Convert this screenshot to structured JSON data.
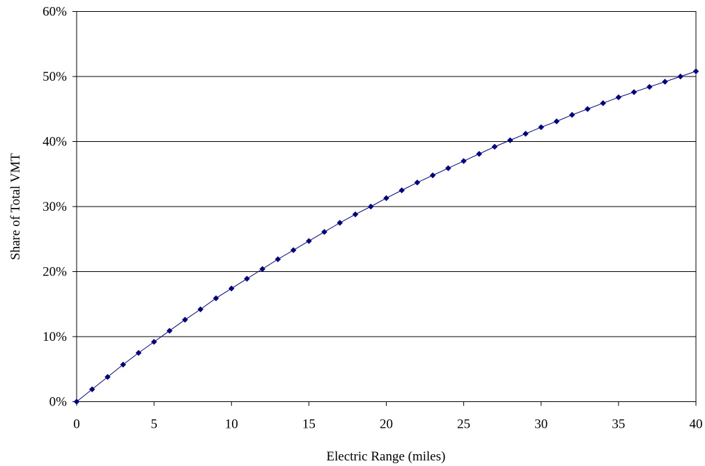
{
  "chart_data": {
    "type": "line",
    "title": "",
    "xlabel": "Electric Range (miles)",
    "ylabel": "Share of Total VMT",
    "xlim": [
      0,
      40
    ],
    "ylim": [
      0,
      60
    ],
    "x_ticks": [
      0,
      5,
      10,
      15,
      20,
      25,
      30,
      35,
      40
    ],
    "x_tick_labels": [
      "0",
      "5",
      "10",
      "15",
      "20",
      "25",
      "30",
      "35",
      "40"
    ],
    "y_ticks": [
      0,
      10,
      20,
      30,
      40,
      50,
      60
    ],
    "y_tick_labels": [
      "0%",
      "10%",
      "20%",
      "30%",
      "40%",
      "50%",
      "60%"
    ],
    "grid": "horizontal",
    "legend": "none",
    "colors": {
      "series": "#000080",
      "grid": "#000000",
      "axis": "#000000"
    },
    "marker": "diamond",
    "series": [
      {
        "x": [
          0,
          1,
          2,
          3,
          4,
          5,
          6,
          7,
          8,
          9,
          10,
          11,
          12,
          13,
          14,
          15,
          16,
          17,
          18,
          19,
          20,
          21,
          22,
          23,
          24,
          25,
          26,
          27,
          28,
          29,
          30,
          31,
          32,
          33,
          34,
          35,
          36,
          37,
          38,
          39,
          40
        ],
        "values": [
          0,
          1.9,
          3.8,
          5.7,
          7.5,
          9.2,
          10.9,
          12.6,
          14.2,
          15.9,
          17.4,
          18.9,
          20.4,
          21.9,
          23.3,
          24.7,
          26.1,
          27.5,
          28.8,
          30.0,
          31.3,
          32.5,
          33.7,
          34.8,
          35.9,
          37.0,
          38.1,
          39.2,
          40.2,
          41.2,
          42.2,
          43.1,
          44.1,
          45.0,
          45.9,
          46.8,
          47.6,
          48.4,
          49.2,
          50.0,
          50.8
        ]
      }
    ]
  }
}
